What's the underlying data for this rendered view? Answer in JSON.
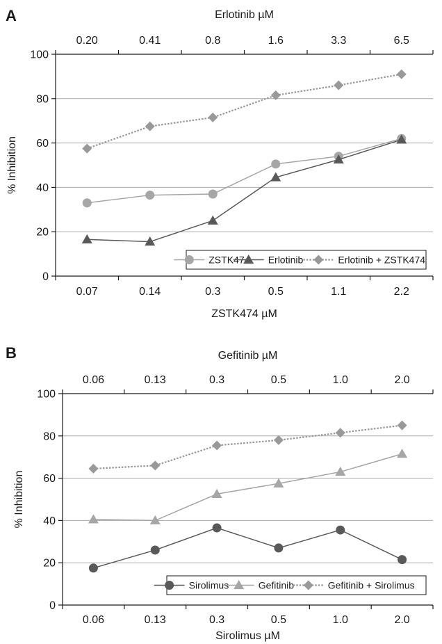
{
  "chart_data": [
    {
      "panel": "A",
      "type": "line",
      "x_top_label": "Erlotinib µM",
      "x_top_ticks": [
        "0.20",
        "0.41",
        "0.8",
        "1.6",
        "3.3",
        "6.5"
      ],
      "x_bottom_label": "ZSTK474 µM",
      "x_bottom_ticks": [
        "0.07",
        "0.14",
        "0.3",
        "0.5",
        "1.1",
        "2.2"
      ],
      "ylabel": "% Inhibition",
      "ylim": [
        0,
        100
      ],
      "yticks": [
        "0",
        "20",
        "40",
        "60",
        "80",
        "100"
      ],
      "grid": true,
      "legend_position": "bottom-right",
      "series": [
        {
          "name": "ZSTK474",
          "marker": "circle",
          "line": "solid",
          "color": "#a6a6a6",
          "values": [
            33,
            36.5,
            37,
            50.5,
            54,
            62
          ]
        },
        {
          "name": "Erlotinib",
          "marker": "triangle",
          "line": "solid",
          "color": "#595959",
          "values": [
            16.5,
            15.5,
            25,
            44.5,
            52.5,
            61.5
          ]
        },
        {
          "name": "Erlotinib + ZSTK474",
          "marker": "diamond",
          "line": "dotted",
          "color": "#999999",
          "values": [
            57.5,
            67.5,
            71.5,
            81.5,
            86,
            91
          ]
        }
      ]
    },
    {
      "panel": "B",
      "type": "line",
      "x_top_label": "Gefitinib µM",
      "x_top_ticks": [
        "0.06",
        "0.13",
        "0.3",
        "0.5",
        "1.0",
        "2.0"
      ],
      "x_bottom_label": "Sirolimus µM",
      "x_bottom_ticks": [
        "0.06",
        "0.13",
        "0.3",
        "0.5",
        "1.0",
        "2.0"
      ],
      "ylabel": "% Inhibition",
      "ylim": [
        0,
        100
      ],
      "yticks": [
        "0",
        "20",
        "40",
        "60",
        "80",
        "100"
      ],
      "grid": true,
      "legend_position": "bottom-right",
      "series": [
        {
          "name": "Sirolimus",
          "marker": "circle",
          "line": "solid",
          "color": "#595959",
          "values": [
            17.5,
            26,
            36.5,
            27,
            35.5,
            21.5
          ]
        },
        {
          "name": "Gefitinib",
          "marker": "triangle",
          "line": "solid",
          "color": "#a6a6a6",
          "values": [
            40.5,
            40,
            52.5,
            57.5,
            63,
            71.5
          ]
        },
        {
          "name": "Gefitinib + Sirolimus",
          "marker": "diamond",
          "line": "dotted",
          "color": "#999999",
          "values": [
            64.5,
            66,
            75.5,
            78,
            81.5,
            85
          ]
        }
      ]
    }
  ]
}
